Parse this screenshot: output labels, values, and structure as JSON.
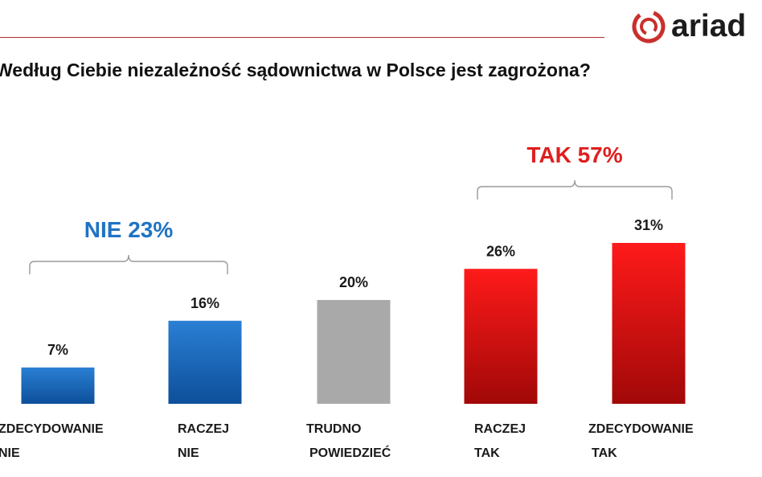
{
  "header": {
    "brand": "ariad",
    "question": "Według Ciebie niezależność sądownictwa w Polsce jest zagrożona?"
  },
  "chart_data": {
    "type": "bar",
    "title": "Według Ciebie niezależność sądownictwa w Polsce jest zagrożona?",
    "categories": [
      [
        "ZDECYDOWANIE",
        "NIE"
      ],
      [
        "RACZEJ",
        "NIE"
      ],
      [
        "TRUDNO",
        "POWIEDZIEĆ"
      ],
      [
        "RACZEJ",
        "TAK"
      ],
      [
        "ZDECYDOWANIE",
        "TAK"
      ]
    ],
    "values": [
      7,
      16,
      20,
      26,
      31
    ],
    "value_labels": [
      "7%",
      "16%",
      "20%",
      "26%",
      "31%"
    ],
    "bar_colors": [
      "blue",
      "blue",
      "gray",
      "red",
      "red"
    ],
    "ylim": [
      0,
      31
    ],
    "groups": [
      {
        "label": "NIE 23%",
        "color": "#1f73c4",
        "from": 0,
        "to": 1
      },
      {
        "label": "TAK 57%",
        "color": "#e01e1e",
        "from": 3,
        "to": 4
      }
    ],
    "colors": {
      "blue_top": "#2a7fd4",
      "blue_bottom": "#0d4f9a",
      "gray": "#a9a9a9",
      "red_top": "#ff1a1a",
      "red_bottom": "#a10808",
      "brand_red": "#c0392b"
    }
  }
}
